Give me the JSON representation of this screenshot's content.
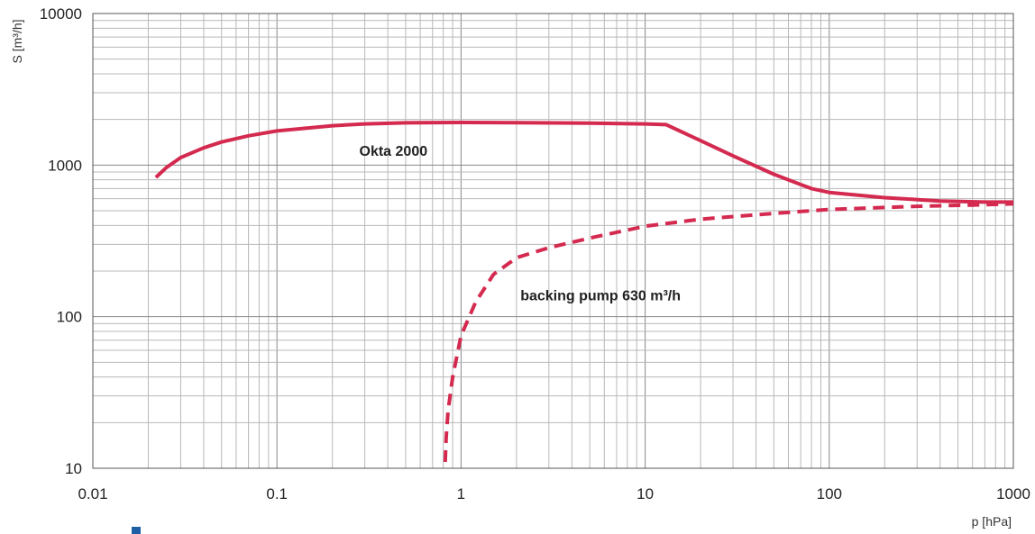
{
  "chart_data": {
    "type": "line",
    "xscale": "log",
    "yscale": "log",
    "xlim": [
      0.01,
      1000
    ],
    "ylim": [
      10,
      10000
    ],
    "grid": true,
    "xlabel": "p [hPa]",
    "ylabel": "S [m³/h]",
    "x_ticks": [
      {
        "value": 0.01,
        "label": "0.01"
      },
      {
        "value": 0.1,
        "label": "0.1"
      },
      {
        "value": 1,
        "label": "1"
      },
      {
        "value": 10,
        "label": "10"
      },
      {
        "value": 100,
        "label": "100"
      },
      {
        "value": 1000,
        "label": "1000"
      }
    ],
    "y_ticks": [
      {
        "value": 10,
        "label": "10"
      },
      {
        "value": 100,
        "label": "100"
      },
      {
        "value": 1000,
        "label": "1000"
      },
      {
        "value": 10000,
        "label": "10000"
      }
    ],
    "series": [
      {
        "name": "Okta 2000",
        "style": "solid",
        "color": "#d42a4f",
        "points": [
          [
            0.022,
            830
          ],
          [
            0.025,
            960
          ],
          [
            0.03,
            1120
          ],
          [
            0.04,
            1300
          ],
          [
            0.05,
            1420
          ],
          [
            0.07,
            1560
          ],
          [
            0.1,
            1680
          ],
          [
            0.2,
            1820
          ],
          [
            0.3,
            1870
          ],
          [
            0.5,
            1900
          ],
          [
            1,
            1910
          ],
          [
            2,
            1905
          ],
          [
            5,
            1890
          ],
          [
            10,
            1870
          ],
          [
            13,
            1850
          ],
          [
            20,
            1450
          ],
          [
            30,
            1150
          ],
          [
            50,
            870
          ],
          [
            80,
            700
          ],
          [
            100,
            660
          ],
          [
            200,
            610
          ],
          [
            400,
            580
          ],
          [
            700,
            570
          ],
          [
            1000,
            570
          ]
        ]
      },
      {
        "name": "backing pump 630 m³/h",
        "style": "dashed",
        "color": "#d42a4f",
        "points": [
          [
            0.82,
            11
          ],
          [
            0.83,
            16
          ],
          [
            0.85,
            24
          ],
          [
            0.9,
            40
          ],
          [
            1.0,
            75
          ],
          [
            1.2,
            125
          ],
          [
            1.5,
            190
          ],
          [
            2,
            245
          ],
          [
            3,
            285
          ],
          [
            5,
            330
          ],
          [
            10,
            395
          ],
          [
            20,
            440
          ],
          [
            50,
            480
          ],
          [
            100,
            510
          ],
          [
            300,
            535
          ],
          [
            600,
            545
          ],
          [
            1000,
            555
          ]
        ]
      }
    ],
    "annotations": [
      {
        "text": "Okta 2000",
        "x": 0.28,
        "y": 1150
      },
      {
        "text": "backing pump 630 m³/h",
        "x": 2.1,
        "y": 128
      }
    ]
  }
}
